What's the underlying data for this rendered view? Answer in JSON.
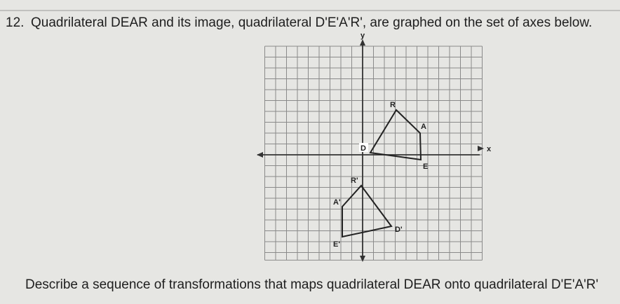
{
  "question": {
    "number": "12.",
    "text": "Quadrilateral DEAR and its image, quadrilateral D'E'A'R', are graphed on the set of axes below."
  },
  "graph": {
    "axis_x": "x",
    "axis_y": "y",
    "labels": {
      "D": "D",
      "E": "E",
      "A": "A",
      "R": "R",
      "D_prime": "D'",
      "E_prime": "E'",
      "A_prime": "A'",
      "R_prime": "R'"
    }
  },
  "prompt": "Describe a sequence of transformations that maps quadrilateral DEAR onto quadrilateral D'E'A'R'"
}
